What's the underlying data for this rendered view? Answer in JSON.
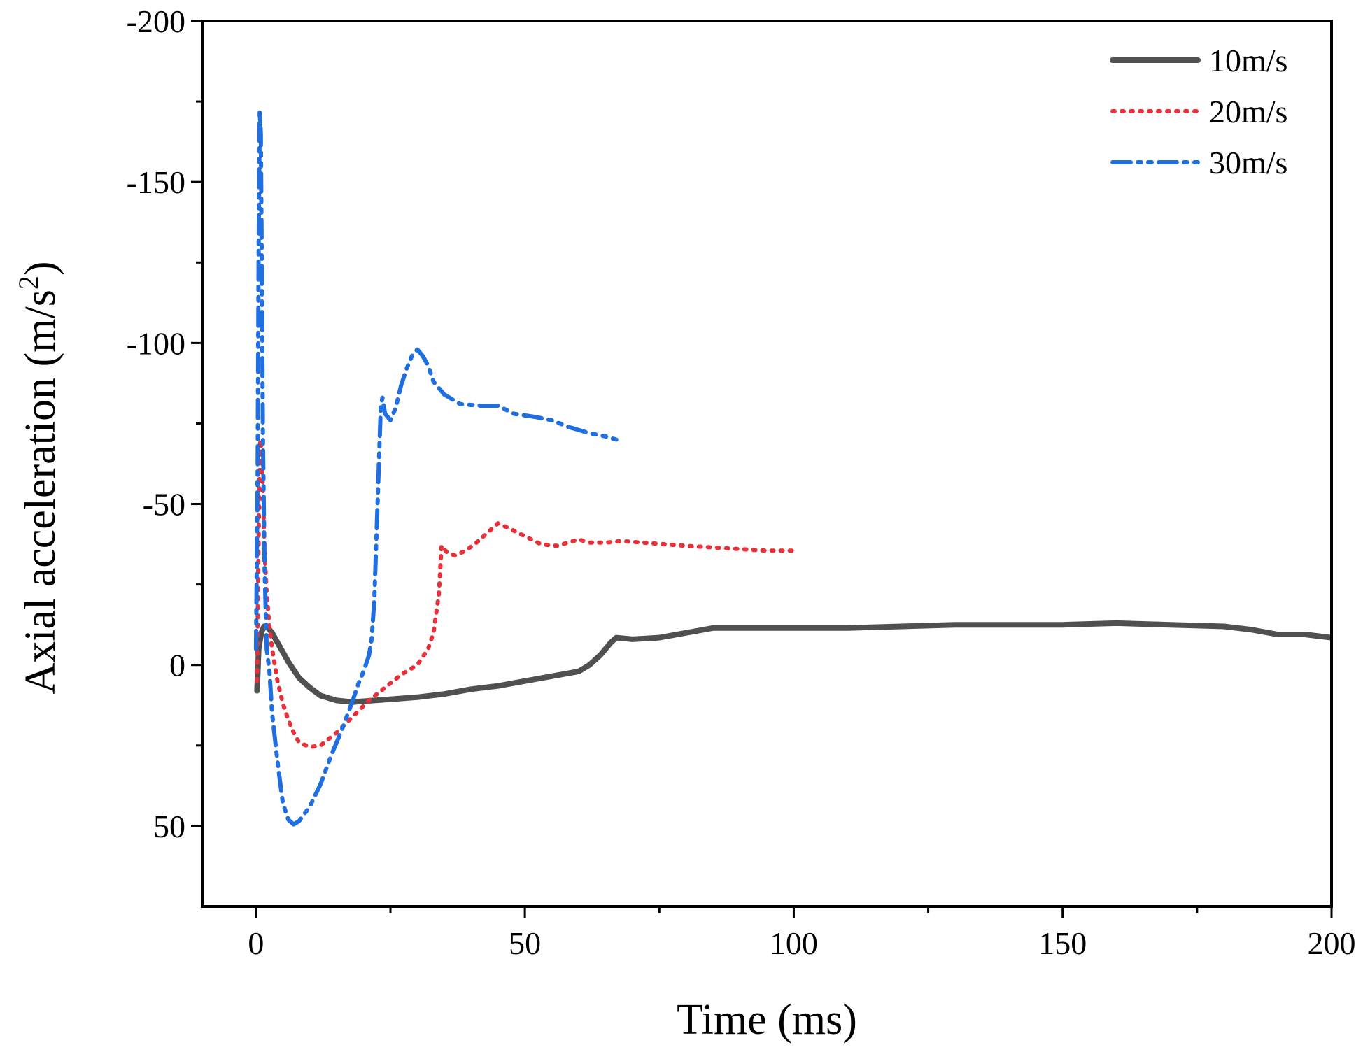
{
  "chart_data": {
    "type": "line",
    "title": "",
    "xlabel": "Time (ms)",
    "ylabel": {
      "main": "Axial acceleration (m/s",
      "sup": "2",
      "close": ")"
    },
    "xlim": [
      -10,
      200
    ],
    "ylim": [
      75,
      -200
    ],
    "y_axis_inverted": true,
    "grid": false,
    "legend_position": "top-right",
    "xticks": [
      0,
      50,
      100,
      150,
      200
    ],
    "xtick_labels": [
      "0",
      "50",
      "100",
      "150",
      "200"
    ],
    "x_minor_ticks": [
      25,
      75,
      125,
      175
    ],
    "yticks": [
      -200,
      -150,
      -100,
      -50,
      0,
      50
    ],
    "ytick_labels": [
      "-200",
      "-150",
      "-100",
      "-50",
      "0",
      "50"
    ],
    "y_minor_ticks": [
      -175,
      -125,
      -75,
      -25,
      25
    ],
    "series": [
      {
        "name": "10m/s",
        "color": "#505050",
        "style": "solid",
        "points": [
          [
            0.2,
            8
          ],
          [
            0.5,
            -5
          ],
          [
            1,
            -10
          ],
          [
            1.5,
            -12
          ],
          [
            2,
            -12
          ],
          [
            3,
            -10
          ],
          [
            4,
            -7
          ],
          [
            5,
            -4
          ],
          [
            6,
            -1
          ],
          [
            7,
            1.5
          ],
          [
            8,
            4
          ],
          [
            10,
            7
          ],
          [
            12,
            9.5
          ],
          [
            15,
            11
          ],
          [
            18,
            11.5
          ],
          [
            22,
            11
          ],
          [
            26,
            10.5
          ],
          [
            30,
            10
          ],
          [
            35,
            9
          ],
          [
            40,
            7.5
          ],
          [
            45,
            6.5
          ],
          [
            50,
            5
          ],
          [
            55,
            3.5
          ],
          [
            60,
            2
          ],
          [
            62,
            0
          ],
          [
            64,
            -3
          ],
          [
            66,
            -7
          ],
          [
            67,
            -8.5
          ],
          [
            70,
            -8
          ],
          [
            75,
            -8.5
          ],
          [
            80,
            -10
          ],
          [
            85,
            -11.5
          ],
          [
            90,
            -11.5
          ],
          [
            100,
            -11.5
          ],
          [
            110,
            -11.5
          ],
          [
            120,
            -12
          ],
          [
            130,
            -12.5
          ],
          [
            140,
            -12.5
          ],
          [
            150,
            -12.5
          ],
          [
            160,
            -13
          ],
          [
            170,
            -12.5
          ],
          [
            180,
            -12
          ],
          [
            185,
            -11
          ],
          [
            190,
            -9.5
          ],
          [
            195,
            -9.5
          ],
          [
            200,
            -8.5
          ]
        ]
      },
      {
        "name": "20m/s",
        "color": "#e8303a",
        "style": "dotted",
        "points": [
          [
            0.2,
            5
          ],
          [
            0.4,
            -25
          ],
          [
            0.6,
            -55
          ],
          [
            0.8,
            -70
          ],
          [
            1,
            -68
          ],
          [
            1.3,
            -55
          ],
          [
            1.6,
            -35
          ],
          [
            2,
            -22
          ],
          [
            2.5,
            -12
          ],
          [
            3,
            -5
          ],
          [
            4,
            5
          ],
          [
            5,
            12
          ],
          [
            6,
            17
          ],
          [
            7,
            21
          ],
          [
            8,
            24
          ],
          [
            10,
            25.5
          ],
          [
            12,
            25
          ],
          [
            15,
            21
          ],
          [
            18,
            16
          ],
          [
            21,
            11
          ],
          [
            24,
            7
          ],
          [
            27,
            3
          ],
          [
            30,
            0
          ],
          [
            32,
            -5
          ],
          [
            33,
            -10
          ],
          [
            34,
            -22
          ],
          [
            34.5,
            -37
          ],
          [
            35.5,
            -35
          ],
          [
            37,
            -34
          ],
          [
            39,
            -35.5
          ],
          [
            41,
            -38
          ],
          [
            43,
            -41
          ],
          [
            45,
            -44
          ],
          [
            47,
            -42.5
          ],
          [
            50,
            -40
          ],
          [
            53,
            -37.5
          ],
          [
            56,
            -37
          ],
          [
            58,
            -38
          ],
          [
            60,
            -39
          ],
          [
            62,
            -38
          ],
          [
            65,
            -38
          ],
          [
            68,
            -38.5
          ],
          [
            72,
            -38
          ],
          [
            76,
            -37.5
          ],
          [
            80,
            -37
          ],
          [
            85,
            -36.5
          ],
          [
            90,
            -36
          ],
          [
            95,
            -35.5
          ],
          [
            100,
            -35.5
          ]
        ]
      },
      {
        "name": "30m/s",
        "color": "#1f6fe0",
        "style": "dashdotdot",
        "points": [
          [
            0,
            -5
          ],
          [
            0.3,
            -60
          ],
          [
            0.5,
            -130
          ],
          [
            0.7,
            -172
          ],
          [
            0.9,
            -165
          ],
          [
            1.1,
            -120
          ],
          [
            1.3,
            -70
          ],
          [
            1.6,
            -30
          ],
          [
            2,
            -5
          ],
          [
            2.5,
            2
          ],
          [
            3,
            15
          ],
          [
            4,
            30
          ],
          [
            5,
            43
          ],
          [
            6,
            48
          ],
          [
            7,
            49.5
          ],
          [
            8,
            48.5
          ],
          [
            10,
            44
          ],
          [
            12,
            37
          ],
          [
            14,
            28
          ],
          [
            16,
            20
          ],
          [
            18,
            11
          ],
          [
            19,
            6
          ],
          [
            20,
            2
          ],
          [
            21,
            -3
          ],
          [
            21.5,
            -8
          ],
          [
            22,
            -20
          ],
          [
            22.5,
            -45
          ],
          [
            23,
            -70
          ],
          [
            23.2,
            -80
          ],
          [
            23.5,
            -83
          ],
          [
            24,
            -78
          ],
          [
            25,
            -76
          ],
          [
            26,
            -80
          ],
          [
            27,
            -87
          ],
          [
            28,
            -92
          ],
          [
            29,
            -96
          ],
          [
            30,
            -98
          ],
          [
            31,
            -96
          ],
          [
            32,
            -93
          ],
          [
            33,
            -88
          ],
          [
            35,
            -84
          ],
          [
            38,
            -81
          ],
          [
            42,
            -80.5
          ],
          [
            45,
            -80.5
          ],
          [
            48,
            -78
          ],
          [
            52,
            -77
          ],
          [
            55,
            -76
          ],
          [
            58,
            -74
          ],
          [
            62,
            -72
          ],
          [
            65,
            -71
          ],
          [
            67,
            -70
          ]
        ]
      }
    ]
  }
}
